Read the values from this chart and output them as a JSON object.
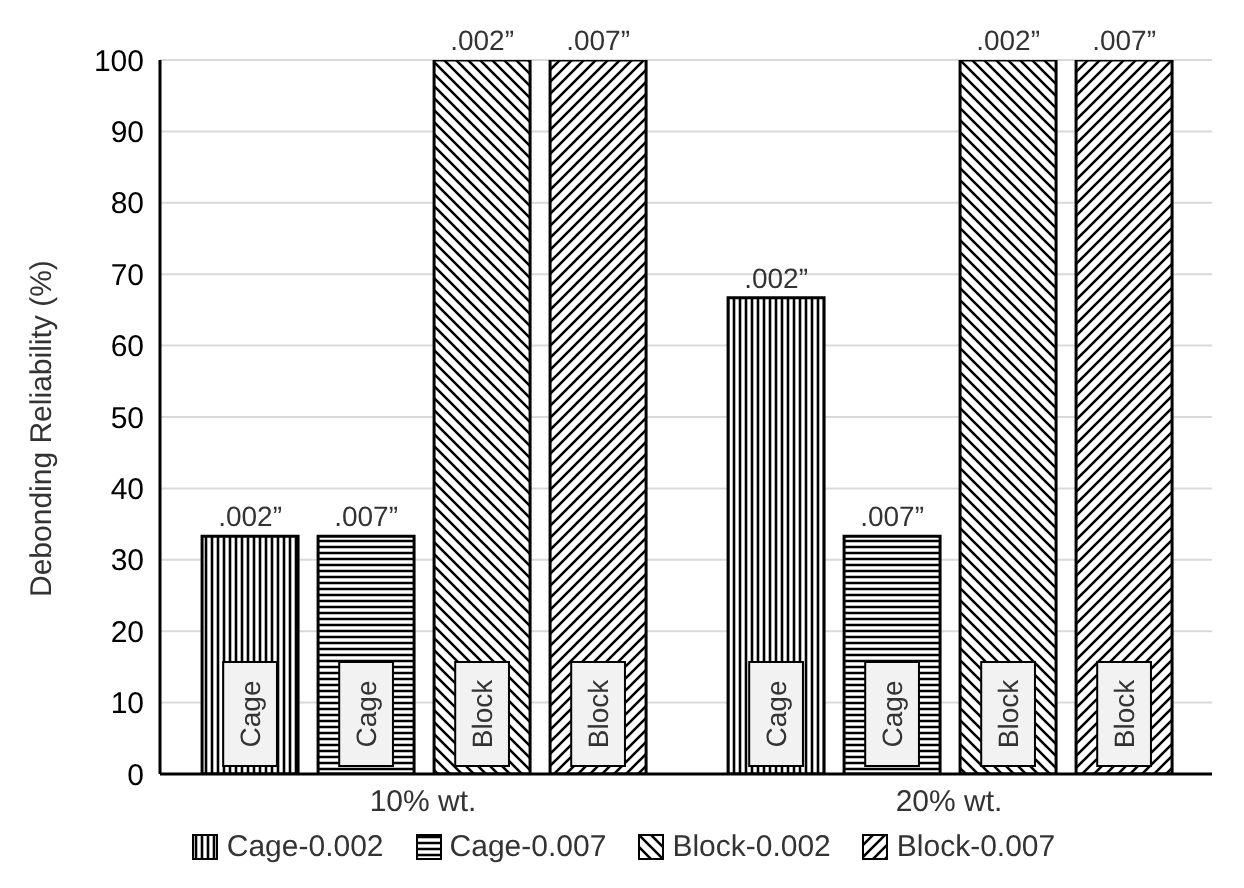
{
  "chart_data": {
    "type": "bar",
    "ylabel": "Debonding Reliability (%)",
    "categories": [
      "10% wt.",
      "20% wt."
    ],
    "series": [
      {
        "name": "Cage-0.002",
        "color": "#000000",
        "values": [
          33.3,
          66.7
        ]
      },
      {
        "name": "Cage-0.007",
        "color": "#000000",
        "values": [
          33.3,
          33.3
        ]
      },
      {
        "name": "Block-0.002",
        "color": "#000000",
        "values": [
          100,
          100
        ]
      },
      {
        "name": "Block-0.007",
        "color": "#000000",
        "values": [
          100,
          100
        ]
      }
    ],
    "annotations": [
      ".002”",
      ".007”",
      ".002”",
      ".007”",
      ".002”",
      ".007”",
      ".002”",
      ".007”",
      "Cage",
      "Cage",
      "Block",
      "Block",
      "Cage",
      "Cage",
      "Block",
      "Block"
    ],
    "ylim": [
      0,
      100
    ],
    "yticks": [
      0,
      10,
      20,
      30,
      40,
      50,
      60,
      70,
      80,
      90,
      100
    ],
    "grid": "y",
    "legend": "bottom"
  }
}
